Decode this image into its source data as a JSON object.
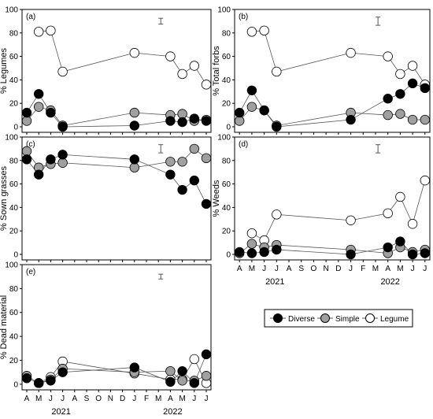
{
  "colors": {
    "diverse": "#000000",
    "simple": "#a0a0a0",
    "legume": "#ffffff",
    "line": "#555555"
  },
  "chart_data": [
    {
      "type": "scatter",
      "panel": "(a)",
      "ylabel": "% Legumes",
      "ylim": [
        0,
        100
      ],
      "yticks": [
        "0",
        "20",
        "40",
        "60",
        "80",
        "100"
      ],
      "series": [
        {
          "name": "Diverse",
          "points": [
            [
              0,
              12
            ],
            [
              1,
              28
            ],
            [
              2,
              12
            ],
            [
              3,
              0
            ],
            [
              9,
              1
            ],
            [
              12,
              5
            ],
            [
              13,
              4
            ],
            [
              14,
              7
            ],
            [
              15,
              5
            ]
          ]
        },
        {
          "name": "Simple",
          "points": [
            [
              0,
              5
            ],
            [
              1,
              17
            ],
            [
              2,
              14
            ],
            [
              3,
              1
            ],
            [
              9,
              12
            ],
            [
              12,
              10
            ],
            [
              13,
              11
            ],
            [
              14,
              5
            ],
            [
              15,
              6
            ]
          ]
        },
        {
          "name": "Legume",
          "points": [
            [
              1,
              81
            ],
            [
              2,
              82
            ],
            [
              3,
              47
            ],
            [
              9,
              63
            ],
            [
              12,
              60
            ],
            [
              13,
              45
            ],
            [
              14,
              52
            ],
            [
              15,
              36
            ]
          ]
        }
      ],
      "error_bar": 5
    },
    {
      "type": "scatter",
      "panel": "(b)",
      "ylabel": "% Total forbs",
      "ylim": [
        0,
        100
      ],
      "yticks": [
        "0",
        "20",
        "40",
        "60",
        "80",
        "100"
      ],
      "series": [
        {
          "name": "Diverse",
          "points": [
            [
              0,
              12
            ],
            [
              1,
              31
            ],
            [
              2,
              14
            ],
            [
              3,
              0
            ],
            [
              9,
              6
            ],
            [
              12,
              24
            ],
            [
              13,
              28
            ],
            [
              14,
              37
            ],
            [
              15,
              33
            ]
          ]
        },
        {
          "name": "Simple",
          "points": [
            [
              0,
              5
            ],
            [
              1,
              17
            ],
            [
              2,
              14
            ],
            [
              3,
              1
            ],
            [
              9,
              12
            ],
            [
              12,
              10
            ],
            [
              13,
              11
            ],
            [
              14,
              6
            ],
            [
              15,
              6
            ]
          ]
        },
        {
          "name": "Legume",
          "points": [
            [
              1,
              81
            ],
            [
              2,
              82
            ],
            [
              3,
              47
            ],
            [
              9,
              63
            ],
            [
              12,
              60
            ],
            [
              13,
              45
            ],
            [
              14,
              52
            ],
            [
              15,
              36
            ]
          ]
        }
      ],
      "error_bar": 7
    },
    {
      "type": "scatter",
      "panel": "(c)",
      "ylabel": "% Sown grasses",
      "ylim": [
        0,
        100
      ],
      "yticks": [
        "0",
        "20",
        "40",
        "60",
        "80",
        "100"
      ],
      "series": [
        {
          "name": "Diverse",
          "points": [
            [
              0,
              81
            ],
            [
              1,
              68
            ],
            [
              2,
              81
            ],
            [
              3,
              85
            ],
            [
              9,
              81
            ],
            [
              12,
              68
            ],
            [
              13,
              55
            ],
            [
              14,
              63
            ],
            [
              15,
              43
            ]
          ]
        },
        {
          "name": "Simple",
          "points": [
            [
              0,
              88
            ],
            [
              1,
              74
            ],
            [
              2,
              77
            ],
            [
              3,
              78
            ],
            [
              9,
              74
            ],
            [
              12,
              79
            ],
            [
              13,
              79
            ],
            [
              14,
              90
            ],
            [
              15,
              82
            ]
          ]
        }
      ],
      "error_bar": 7
    },
    {
      "type": "scatter",
      "panel": "(d)",
      "ylabel": "% Weeds",
      "ylim": [
        0,
        100
      ],
      "yticks": [
        "0",
        "20",
        "40",
        "60",
        "80",
        "100"
      ],
      "series": [
        {
          "name": "Diverse",
          "points": [
            [
              0,
              2
            ],
            [
              1,
              1
            ],
            [
              2,
              2
            ],
            [
              3,
              4
            ],
            [
              9,
              0
            ],
            [
              12,
              6
            ],
            [
              13,
              11
            ],
            [
              14,
              0
            ],
            [
              15,
              1
            ]
          ]
        },
        {
          "name": "Simple",
          "points": [
            [
              0,
              1
            ],
            [
              1,
              9
            ],
            [
              2,
              6
            ],
            [
              3,
              8
            ],
            [
              9,
              4
            ],
            [
              12,
              1
            ],
            [
              13,
              6
            ],
            [
              14,
              2
            ],
            [
              15,
              4
            ]
          ]
        },
        {
          "name": "Legume",
          "points": [
            [
              1,
              18
            ],
            [
              2,
              12
            ],
            [
              3,
              34
            ],
            [
              9,
              29
            ],
            [
              12,
              35
            ],
            [
              13,
              49
            ],
            [
              14,
              26
            ],
            [
              15,
              63
            ]
          ]
        }
      ],
      "error_bar": 7,
      "xticks": [
        "A",
        "M",
        "J",
        "J",
        "A",
        "S",
        "O",
        "N",
        "D",
        "J",
        "F",
        "M",
        "A",
        "M",
        "J",
        "J"
      ],
      "year_labels": [
        "2021",
        "2022"
      ]
    },
    {
      "type": "scatter",
      "panel": "(e)",
      "ylabel": "% Dead material",
      "ylim": [
        0,
        100
      ],
      "yticks": [
        "0",
        "20",
        "40",
        "60",
        "80",
        "100"
      ],
      "series": [
        {
          "name": "Diverse",
          "points": [
            [
              0,
              5
            ],
            [
              1,
              1
            ],
            [
              2,
              3
            ],
            [
              3,
              10
            ],
            [
              9,
              14
            ],
            [
              12,
              2
            ],
            [
              13,
              11
            ],
            [
              14,
              1
            ],
            [
              15,
              25
            ]
          ]
        },
        {
          "name": "Simple",
          "points": [
            [
              0,
              7
            ],
            [
              1,
              1
            ],
            [
              2,
              4
            ],
            [
              3,
              13
            ],
            [
              9,
              10
            ],
            [
              12,
              11
            ],
            [
              13,
              3
            ],
            [
              14,
              3
            ],
            [
              15,
              7
            ]
          ]
        },
        {
          "name": "Legume",
          "points": [
            [
              1,
              1
            ],
            [
              2,
              6
            ],
            [
              3,
              19
            ],
            [
              9,
              9
            ],
            [
              12,
              4
            ],
            [
              13,
              4
            ],
            [
              14,
              21
            ],
            [
              15,
              1
            ]
          ]
        }
      ],
      "error_bar": 4,
      "xticks": [
        "A",
        "M",
        "J",
        "J",
        "A",
        "S",
        "O",
        "N",
        "D",
        "J",
        "F",
        "M",
        "A",
        "M",
        "J",
        "J"
      ],
      "year_labels": [
        "2021",
        "2022"
      ]
    }
  ],
  "legend": {
    "placement": "bottom-right",
    "items": [
      {
        "label": "Diverse",
        "key": "diverse"
      },
      {
        "label": "Simple",
        "key": "simple"
      },
      {
        "label": "Legume",
        "key": "legume"
      }
    ]
  }
}
